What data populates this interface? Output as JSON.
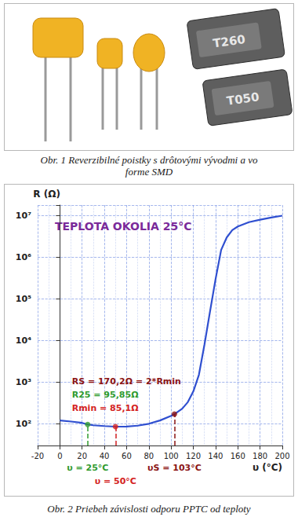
{
  "figure1": {
    "caption_number": "Obr. 1",
    "caption": "Reverzibilné poistky s drôtovými vývodmi a vo forme SMD",
    "part_labels": [
      "T260",
      "T050"
    ]
  },
  "chart_data": {
    "type": "line",
    "title": "TEPLOTA OKOLIA 25°C",
    "x_label": "υ (°C)",
    "y_label": "R (Ω)",
    "x": [
      0,
      10,
      20,
      25,
      30,
      40,
      50,
      60,
      70,
      80,
      90,
      100,
      103,
      110,
      115,
      120,
      125,
      130,
      135,
      140,
      145,
      150,
      155,
      160,
      170,
      180,
      190,
      200
    ],
    "values": [
      120,
      113,
      105,
      95.85,
      92,
      88,
      85.1,
      86,
      90,
      100,
      120,
      155,
      170.2,
      230,
      330,
      600,
      1500,
      8000,
      50000,
      300000,
      1500000,
      3000000,
      4500000,
      5500000,
      7000000,
      8000000,
      9000000,
      10000000
    ],
    "color": "#2f4fd0",
    "line_style": "solid",
    "marker": "none",
    "xlim": [
      -20,
      200
    ],
    "xticks": [
      -20,
      0,
      20,
      40,
      60,
      80,
      100,
      120,
      140,
      160,
      180,
      200
    ],
    "ylim": [
      30,
      18000000
    ],
    "yticks": [
      {
        "value": 100,
        "label": "10²"
      },
      {
        "value": 1000,
        "label": "10³"
      },
      {
        "value": 10000,
        "label": "10⁴"
      },
      {
        "value": 100000,
        "label": "10⁵"
      },
      {
        "value": 1000000,
        "label": "10⁶"
      },
      {
        "value": 10000000,
        "label": "10⁷"
      }
    ],
    "log": "y",
    "grid": true,
    "points": [
      {
        "x": 25,
        "y": 95.85,
        "color": "#2e9a2e",
        "label": "R25 = 95,85Ω",
        "x_label": "υ = 25°C"
      },
      {
        "x": 50,
        "y": 85.1,
        "color": "#d42222",
        "label": "Rmin = 85,1Ω",
        "x_label": "υ = 50°C"
      },
      {
        "x": 103,
        "y": 170.2,
        "color": "#8b1414",
        "label": "RS = 170,2Ω = 2*Rmin",
        "x_label": "υS = 103°C"
      }
    ]
  },
  "figure2": {
    "caption_number": "Obr. 2",
    "caption": "Priebeh závislosti odporu PPTC od teploty"
  }
}
